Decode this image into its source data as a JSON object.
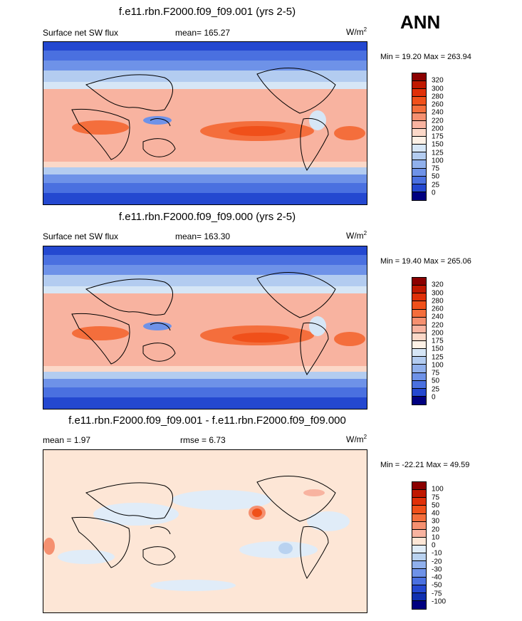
{
  "season": "ANN",
  "units_base": "W/m",
  "units_exp": "2",
  "panels": [
    {
      "title": "f.e11.rbn.F2000.f09_f09.001 (yrs 2-5)",
      "variable": "Surface net SW flux",
      "stat_text": "mean= 165.27",
      "minmax": "Min =  19.20 Max = 263.94"
    },
    {
      "title": "f.e11.rbn.F2000.f09_f09.000 (yrs 2-5)",
      "variable": "Surface net SW flux",
      "stat_text": "mean= 163.30",
      "minmax": "Min =  19.40 Max = 265.06"
    },
    {
      "title": "f.e11.rbn.F2000.f09_f09.001 - f.e11.rbn.F2000.f09_f09.000",
      "mean_text": "mean =   1.97",
      "rmse_text": "rmse =   6.73",
      "minmax": "Min = -22.21 Max =  49.59"
    }
  ],
  "colorbars": {
    "flux_levels": [
      "320",
      "300",
      "280",
      "260",
      "240",
      "220",
      "200",
      "175",
      "150",
      "125",
      "100",
      "75",
      "50",
      "25",
      "0"
    ],
    "flux_colors": [
      "#8b0000",
      "#c01800",
      "#e03008",
      "#f0501a",
      "#f46e3c",
      "#f59070",
      "#f8b3a0",
      "#fbd8c8",
      "#fdf1e6",
      "#d6e6f6",
      "#b3ccf0",
      "#90b0ec",
      "#6e92e8",
      "#4a70e0",
      "#2448d0",
      "#000080"
    ],
    "diff_levels": [
      "100",
      "75",
      "50",
      "40",
      "30",
      "20",
      "10",
      "0",
      "-10",
      "-20",
      "-30",
      "-40",
      "-50",
      "-75",
      "-100"
    ],
    "diff_colors": [
      "#8b0000",
      "#c01800",
      "#e03008",
      "#f0501a",
      "#f46e3c",
      "#f59070",
      "#f8b3a0",
      "#fde6d6",
      "#e0ecf8",
      "#b9d2f0",
      "#90b0ec",
      "#6e92e8",
      "#4a70e0",
      "#2448d0",
      "#1030b0",
      "#000080"
    ]
  },
  "chart_data": [
    {
      "type": "heatmap",
      "title": "f.e11.rbn.F2000.f09_f09.001 (yrs 2-5)",
      "variable": "Surface net SW flux",
      "units": "W/m2",
      "mean": 165.27,
      "min": 19.2,
      "max": 263.94,
      "contour_levels": [
        0,
        25,
        50,
        75,
        100,
        125,
        150,
        175,
        200,
        220,
        240,
        260,
        280,
        300,
        320
      ]
    },
    {
      "type": "heatmap",
      "title": "f.e11.rbn.F2000.f09_f09.000 (yrs 2-5)",
      "variable": "Surface net SW flux",
      "units": "W/m2",
      "mean": 163.3,
      "min": 19.4,
      "max": 265.06,
      "contour_levels": [
        0,
        25,
        50,
        75,
        100,
        125,
        150,
        175,
        200,
        220,
        240,
        260,
        280,
        300,
        320
      ]
    },
    {
      "type": "heatmap",
      "title": "f.e11.rbn.F2000.f09_f09.001 - f.e11.rbn.F2000.f09_f09.000",
      "units": "W/m2",
      "mean": 1.97,
      "rmse": 6.73,
      "min": -22.21,
      "max": 49.59,
      "contour_levels": [
        -100,
        -75,
        -50,
        -40,
        -30,
        -20,
        -10,
        0,
        10,
        20,
        30,
        40,
        50,
        75,
        100
      ]
    }
  ]
}
